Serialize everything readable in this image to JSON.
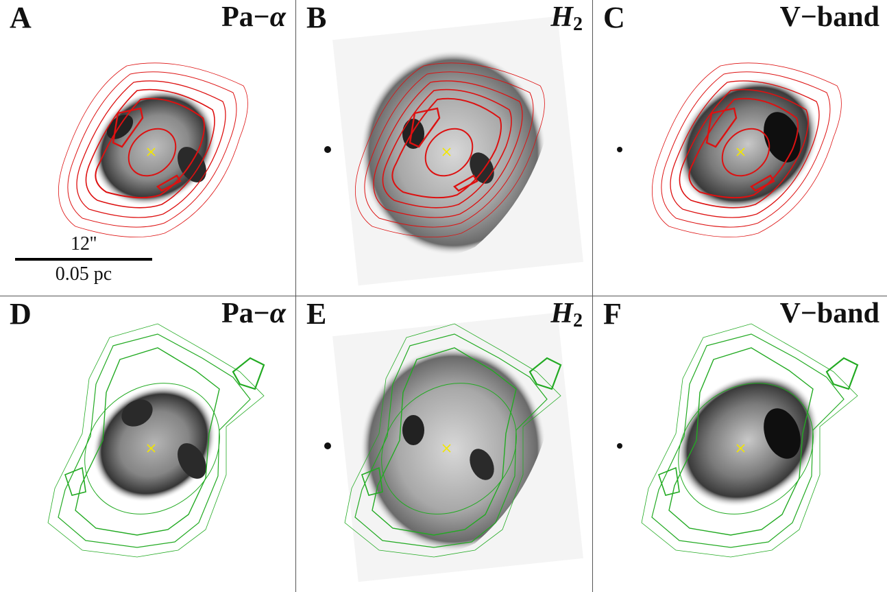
{
  "panels": [
    {
      "letter": "A",
      "label_prefix": "Pa−",
      "label_symbol": "α",
      "label_sub": ""
    },
    {
      "letter": "B",
      "label_prefix": "",
      "label_symbol": "H",
      "label_sub": "2"
    },
    {
      "letter": "C",
      "label_prefix": "V−band",
      "label_symbol": "",
      "label_sub": ""
    },
    {
      "letter": "D",
      "label_prefix": "Pa−",
      "label_symbol": "α",
      "label_sub": ""
    },
    {
      "letter": "E",
      "label_prefix": "",
      "label_symbol": "H",
      "label_sub": "2"
    },
    {
      "letter": "F",
      "label_prefix": "V−band",
      "label_symbol": "",
      "label_sub": ""
    }
  ],
  "scalebar": {
    "angular": "12''",
    "physical": "0.05 pc"
  },
  "colors": {
    "top_contours": "#dd1111",
    "bottom_contours": "#22aa22",
    "center_marker": "#f2e600",
    "nebula": "#3a3a3a"
  },
  "marker_icon": "x-cross"
}
